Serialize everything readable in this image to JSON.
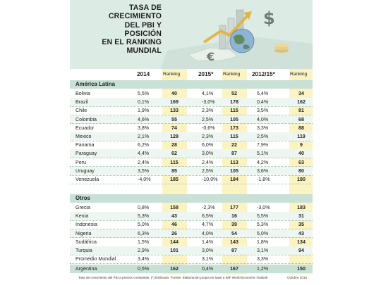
{
  "title": [
    "TASA DE",
    "CRECIMIENTO",
    "DEL PBI Y",
    "POSICIÓN",
    "EN EL RANKING",
    "MUNDIAL"
  ],
  "headers": {
    "year1": "2014",
    "rank1": "Ranking",
    "year2": "2015*",
    "rank2": "Ranking",
    "year3": "2012/15*",
    "rank3": "Ranking"
  },
  "sections": {
    "latam": "América Latina",
    "otros": "Otros"
  },
  "latam_rows": [
    {
      "name": "Bolivia",
      "v1": "5,5%",
      "r1": "40",
      "v2": "4,1%",
      "r2": "52",
      "v3": "5,4%",
      "r3": "34"
    },
    {
      "name": "Brazil",
      "v1": "0,1%",
      "r1": "169",
      "v2": "-3,0%",
      "r2": "178",
      "v3": "0,4%",
      "r3": "162"
    },
    {
      "name": "Chile",
      "v1": "1,9%",
      "r1": "133",
      "v2": "2,3%",
      "r2": "115",
      "v3": "3,5%",
      "r3": "81"
    },
    {
      "name": "Colombia",
      "v1": "4,6%",
      "r1": "55",
      "v2": "2,5%",
      "r2": "105",
      "v3": "4,0%",
      "r3": "68"
    },
    {
      "name": "Ecuador",
      "v1": "3,8%",
      "r1": "74",
      "v2": "-0,6%",
      "r2": "173",
      "v3": "3,3%",
      "r3": "88"
    },
    {
      "name": "Mexico",
      "v1": "2,1%",
      "r1": "128",
      "v2": "2,3%",
      "r2": "115",
      "v3": "2,5%",
      "r3": "119"
    },
    {
      "name": "Panama",
      "v1": "6,2%",
      "r1": "28",
      "v2": "6,0%",
      "r2": "22",
      "v3": "7,9%",
      "r3": "9"
    },
    {
      "name": "Paraguay",
      "v1": "4,4%",
      "r1": "62",
      "v2": "3,0%",
      "r2": "87",
      "v3": "5,1%",
      "r3": "40"
    },
    {
      "name": "Peru",
      "v1": "2,4%",
      "r1": "115",
      "v2": "2,4%",
      "r2": "113",
      "v3": "4,2%",
      "r3": "63"
    },
    {
      "name": "Uruguay",
      "v1": "3,5%",
      "r1": "85",
      "v2": "2,5%",
      "r2": "105",
      "v3": "3,6%",
      "r3": "80"
    },
    {
      "name": "Venezuela",
      "v1": "-4,0%",
      "r1": "185",
      "v2": "-10,0%",
      "r2": "184",
      "v3": "-1,8%",
      "r3": "180"
    }
  ],
  "otros_rows": [
    {
      "name": "Grecia",
      "v1": "0,8%",
      "r1": "158",
      "v2": "-2,3%",
      "r2": "177",
      "v3": "-3,0%",
      "r3": "183"
    },
    {
      "name": "Kenia",
      "v1": "5,3%",
      "r1": "43",
      "v2": "6,5%",
      "r2": "16",
      "v3": "5,5%",
      "r3": "31"
    },
    {
      "name": "Indonesia",
      "v1": "5,0%",
      "r1": "46",
      "v2": "4,7%",
      "r2": "39",
      "v3": "5,3%",
      "r3": "35"
    },
    {
      "name": "Nigeria",
      "v1": "6,3%",
      "r1": "26",
      "v2": "4,0%",
      "r2": "54",
      "v3": "5,0%",
      "r3": "43"
    },
    {
      "name": "Sudáfrica",
      "v1": "1,5%",
      "r1": "144",
      "v2": "1,4%",
      "r2": "143",
      "v3": "1,8%",
      "r3": "134"
    },
    {
      "name": "Turquia",
      "v1": "2,9%",
      "r1": "101",
      "v2": "3,0%",
      "r2": "87",
      "v3": "3,1%",
      "r3": "94"
    },
    {
      "name": "Promedio Mundial",
      "v1": "3,4%",
      "r1": "",
      "v2": "3,1%",
      "r2": "",
      "v3": "3,3%",
      "r3": ""
    }
  ],
  "argentina_row": {
    "name": "Argentina",
    "v1": "0,5%",
    "r1": "162",
    "v2": "0,4%",
    "r2": "167",
    "v3": "1,2%",
    "r3": "150"
  },
  "footnote": "Tasa de crecimiento del PBI a precios constantes. (*) Estimado. Fuente: Elaboración propia en base a IMF World Economic Outlook",
  "footnote_date": "Octubre 2015",
  "colors": {
    "header_bg": "#ddebe5",
    "section_bg": "#c9e0d6",
    "row_green": "#eef6f1",
    "rank_band": "#fbf3c2",
    "argentina_bg": "#c9e0d6"
  }
}
